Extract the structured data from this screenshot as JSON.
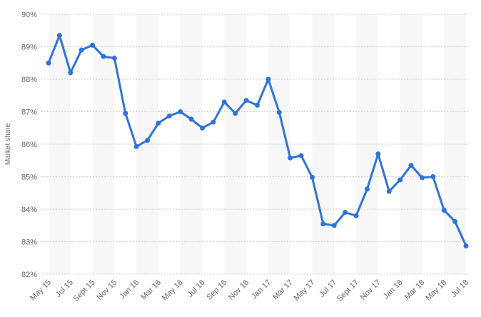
{
  "chart_data": {
    "type": "line",
    "y_label": "Market share",
    "categories": [
      "May 15",
      null,
      "Jul 15",
      null,
      "Sept 15",
      null,
      "Nov 15",
      null,
      "Jan 16",
      null,
      "Mar 16",
      null,
      "May 16",
      null,
      "Jul 16",
      null,
      "Sep 16",
      null,
      "Nov 16",
      null,
      "Jan 17",
      null,
      "Mar 17",
      null,
      "May 17",
      null,
      "Jul 17",
      null,
      "Sept 17",
      null,
      "Nov 17",
      null,
      "Jan 18",
      null,
      "Mar 18",
      null,
      "May 18",
      null,
      "Jul 18"
    ],
    "series": [
      {
        "color": "#2f73d8",
        "values": [
          88.5,
          89.35,
          88.2,
          88.9,
          89.05,
          88.7,
          88.65,
          86.95,
          85.93,
          86.12,
          86.65,
          86.87,
          87.0,
          86.77,
          86.5,
          86.68,
          87.3,
          86.95,
          87.35,
          87.2,
          88.0,
          86.98,
          85.58,
          85.65,
          84.98,
          83.55,
          83.5,
          83.9,
          83.8,
          84.62,
          85.7,
          84.55,
          84.9,
          85.35,
          84.97,
          85.0,
          83.97,
          83.62,
          82.87
        ]
      }
    ],
    "ylim": [
      82,
      90
    ],
    "yticks": [
      {
        "value": 82,
        "label": "82%"
      },
      {
        "value": 83,
        "label": "83%"
      },
      {
        "value": 84,
        "label": "84%"
      },
      {
        "value": 85,
        "label": "85%"
      },
      {
        "value": 86,
        "label": "86%"
      },
      {
        "value": 87,
        "label": "87%"
      },
      {
        "value": 88,
        "label": "88%"
      },
      {
        "value": 89,
        "label": "89%"
      },
      {
        "value": 90,
        "label": "90%"
      }
    ],
    "grid": true
  }
}
